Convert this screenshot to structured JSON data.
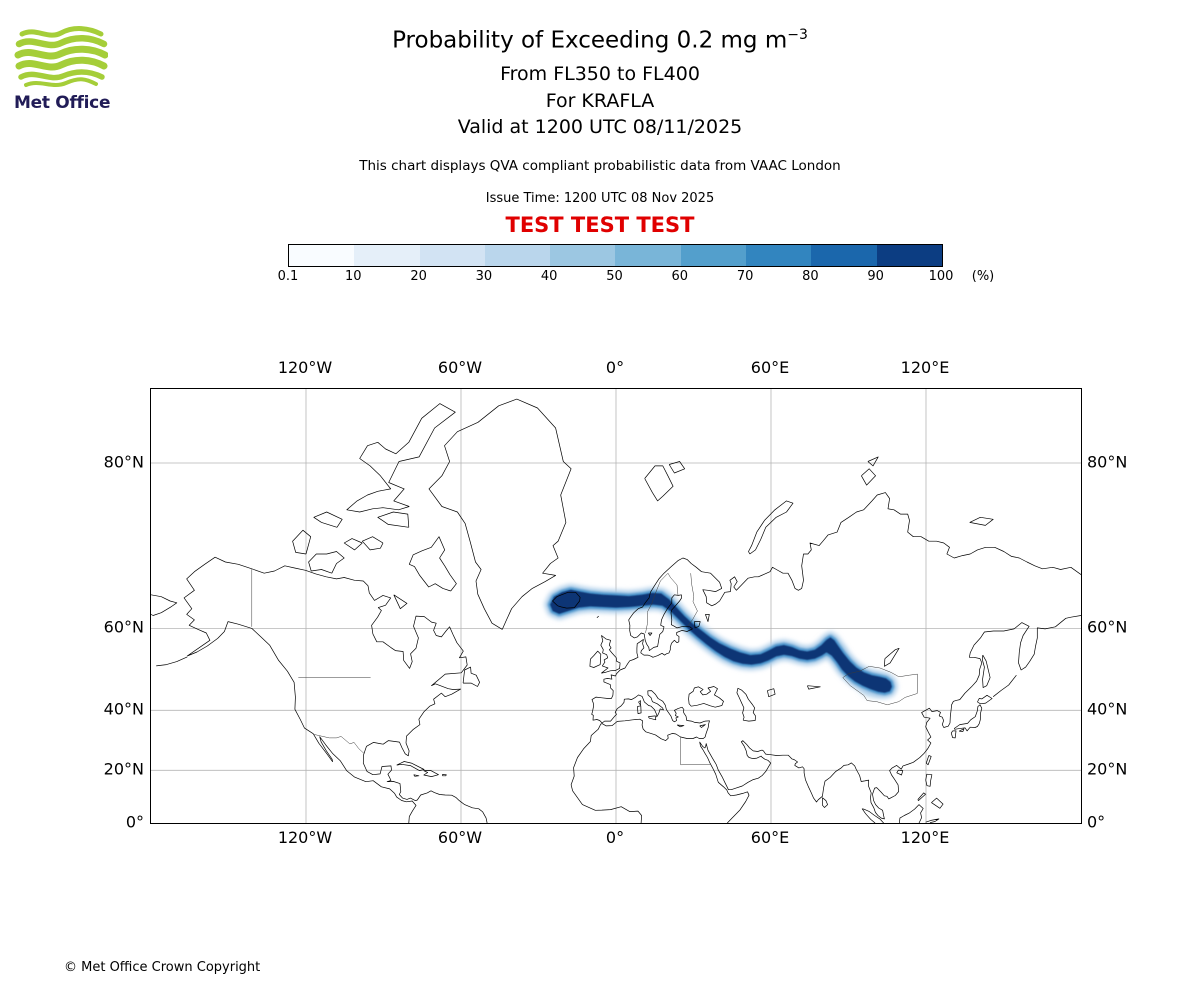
{
  "logo": {
    "text": "Met Office",
    "green": "#a5ce39",
    "navy": "#211c57"
  },
  "header": {
    "title_main": "Probability of Exceeding 0.2 mg m",
    "title_sup": "−3",
    "subtitle1": "From FL350 to FL400",
    "subtitle2": "For KRAFLA",
    "subtitle3": "Valid at 1200 UTC 08/11/2025",
    "disclaimer": "This chart displays QVA compliant probabilistic data from VAAC London",
    "issue_time": "Issue Time: 1200 UTC 08 Nov 2025",
    "test_banner": "TEST TEST TEST",
    "test_color": "#e00000"
  },
  "footer": {
    "copyright": "© Met Office Crown Copyright"
  },
  "chart_data": {
    "type": "heatmap",
    "title": "Probability of Exceeding 0.2 mg m-3",
    "subtitle": "From FL350 to FL400, For KRAFLA, Valid at 1200 UTC 08/11/2025",
    "source": "VAAC London QVA probabilistic volcanic ash guidance",
    "volcano": "KRAFLA",
    "layer": "FL350-FL400",
    "threshold": "0.2 mg m-3",
    "valid_time": "1200 UTC 08/11/2025",
    "issue_time": "1200 UTC 08 Nov 2025",
    "colorbar": {
      "ticks": [
        "0.1",
        "10",
        "20",
        "30",
        "40",
        "50",
        "60",
        "70",
        "80",
        "90",
        "100"
      ],
      "unit": "(%)",
      "colors": [
        "#f9fcff",
        "#e5eff9",
        "#d2e3f3",
        "#bad6ec",
        "#9cc7e2",
        "#79b5d8",
        "#539fcc",
        "#3285bf",
        "#1b67ac",
        "#0c3d82"
      ]
    },
    "map": {
      "projection": "mercator",
      "lon_range": [
        -180,
        180
      ],
      "lat_range": [
        0,
        84
      ],
      "grid_lons": [
        -120,
        -60,
        0,
        60,
        120
      ],
      "grid_lats": [
        20,
        40,
        60,
        80
      ],
      "lon_ticks": [
        {
          "label": "120°W",
          "value": -120
        },
        {
          "label": "60°W",
          "value": -60
        },
        {
          "label": "0°",
          "value": 0
        },
        {
          "label": "60°E",
          "value": 60
        },
        {
          "label": "120°E",
          "value": 120
        }
      ],
      "lat_ticks": [
        {
          "label": "80°N",
          "value": 80
        },
        {
          "label": "60°N",
          "value": 60
        },
        {
          "label": "40°N",
          "value": 40
        },
        {
          "label": "20°N",
          "value": 20
        },
        {
          "label": "0°",
          "value": 0
        }
      ]
    },
    "plume": {
      "description": "High-probability (80-100%) ash band from Iceland across Scandinavia into central Asia, ending near Mongolia",
      "max_probability_band_pct": "90-100",
      "colors": {
        "core": "#0a3574",
        "mid": "#4691c9",
        "halo": "#a9cbe8",
        "diffuse": "#8fbede"
      },
      "outline": [
        [
          -24.5,
          63.2
        ],
        [
          -25.5,
          64.3
        ],
        [
          -24,
          65.6
        ],
        [
          -21,
          66.3
        ],
        [
          -17.5,
          66.7
        ],
        [
          -14,
          66.4
        ],
        [
          -10,
          66.1
        ],
        [
          -5,
          65.9
        ],
        [
          0,
          65.8
        ],
        [
          5,
          65.7
        ],
        [
          10,
          65.9
        ],
        [
          14,
          66.2
        ],
        [
          17.5,
          66.1
        ],
        [
          20.5,
          65.2
        ],
        [
          23.5,
          63.8
        ],
        [
          26.5,
          62.3
        ],
        [
          29.5,
          61
        ],
        [
          33,
          59.6
        ],
        [
          36.5,
          58.2
        ],
        [
          40,
          57
        ],
        [
          44,
          55.9
        ],
        [
          48,
          55
        ],
        [
          52,
          54.4
        ],
        [
          56,
          54.6
        ],
        [
          59,
          55.4
        ],
        [
          62,
          56.3
        ],
        [
          65,
          56.6
        ],
        [
          68,
          56.2
        ],
        [
          71,
          55.5
        ],
        [
          74,
          55.2
        ],
        [
          77,
          55.6
        ],
        [
          79.5,
          56.6
        ],
        [
          81.5,
          57.7
        ],
        [
          83,
          58.2
        ],
        [
          84.5,
          57.6
        ],
        [
          86,
          56.4
        ],
        [
          88,
          54.8
        ],
        [
          90.5,
          53
        ],
        [
          93,
          51.5
        ],
        [
          96,
          50.3
        ],
        [
          99,
          49.6
        ],
        [
          102,
          49.2
        ],
        [
          104.5,
          48.8
        ],
        [
          106.3,
          47.9
        ],
        [
          106.8,
          46.6
        ],
        [
          106,
          45.4
        ],
        [
          104,
          45
        ],
        [
          101.5,
          45.3
        ],
        [
          98.5,
          46
        ],
        [
          95.5,
          46.9
        ],
        [
          92.5,
          48
        ],
        [
          90,
          49.3
        ],
        [
          87.5,
          51
        ],
        [
          85.5,
          52.8
        ],
        [
          83.5,
          54.3
        ],
        [
          81.5,
          55
        ],
        [
          79.5,
          54.3
        ],
        [
          77,
          53.6
        ],
        [
          74,
          53.3
        ],
        [
          71,
          53.6
        ],
        [
          68,
          54.2
        ],
        [
          65,
          54.5
        ],
        [
          62,
          54.1
        ],
        [
          59,
          53.2
        ],
        [
          56,
          52.5
        ],
        [
          52.5,
          52.2
        ],
        [
          49,
          52.4
        ],
        [
          45.5,
          53
        ],
        [
          42,
          54
        ],
        [
          38.5,
          55.3
        ],
        [
          35,
          56.8
        ],
        [
          31.5,
          58.3
        ],
        [
          28,
          59.9
        ],
        [
          24.5,
          61.6
        ],
        [
          21,
          63.2
        ],
        [
          18,
          64.1
        ],
        [
          14.5,
          64.3
        ],
        [
          10,
          64.1
        ],
        [
          5,
          63.9
        ],
        [
          0,
          63.8
        ],
        [
          -5,
          63.9
        ],
        [
          -10,
          64
        ],
        [
          -14.5,
          63.8
        ],
        [
          -18.5,
          63.2
        ],
        [
          -22,
          62.7
        ],
        [
          -24.5,
          63.2
        ]
      ],
      "diffuse": [
        {
          "lon": 99.5,
          "lat": 46.3,
          "rlon": 5,
          "rlat": 2.3
        },
        {
          "lon": 103.5,
          "lat": 46.8,
          "rlon": 3,
          "rlat": 1.6
        },
        {
          "lon": 86.5,
          "lat": 55.2,
          "rlon": 2.2,
          "rlat": 1.3
        },
        {
          "lon": 94,
          "lat": 48.8,
          "rlon": 3,
          "rlat": 1.5
        }
      ]
    }
  }
}
